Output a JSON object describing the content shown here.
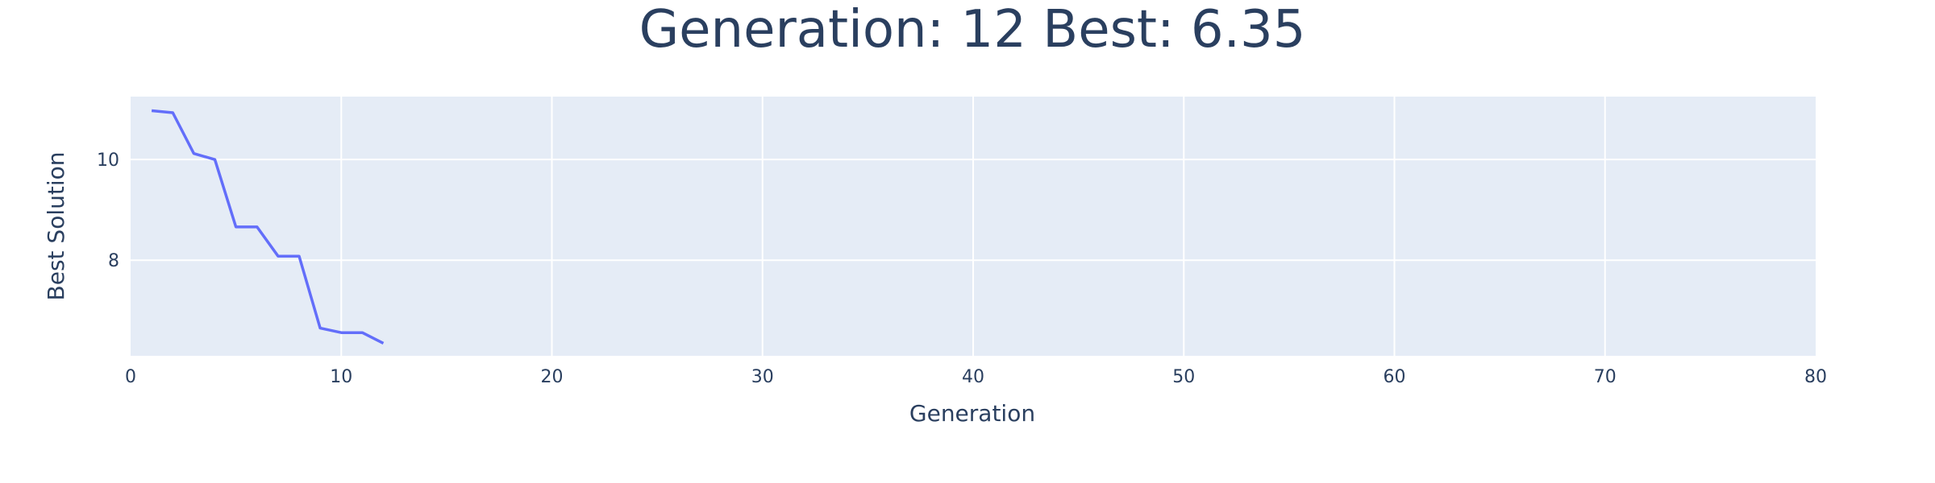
{
  "chart_data": {
    "type": "line",
    "title": "Generation: 12 Best: 6.35",
    "xlabel": "Generation",
    "ylabel": "Best Solution",
    "xlim": [
      0,
      80
    ],
    "ylim": [
      6.1,
      11.25
    ],
    "xticks": [
      0,
      10,
      20,
      30,
      40,
      50,
      60,
      70,
      80
    ],
    "yticks": [
      8,
      10
    ],
    "grid": true,
    "colors": {
      "plot_bg": "#e5ecf6",
      "grid": "#ffffff",
      "line": "#636efa",
      "text": "#2a3f5f"
    },
    "series": [
      {
        "x": [
          1,
          2,
          3,
          4,
          5,
          6,
          7,
          8,
          9,
          10,
          11,
          12
        ],
        "y": [
          10.97,
          10.93,
          10.12,
          10.0,
          8.66,
          8.66,
          8.08,
          8.08,
          6.65,
          6.56,
          6.56,
          6.35
        ]
      }
    ]
  }
}
